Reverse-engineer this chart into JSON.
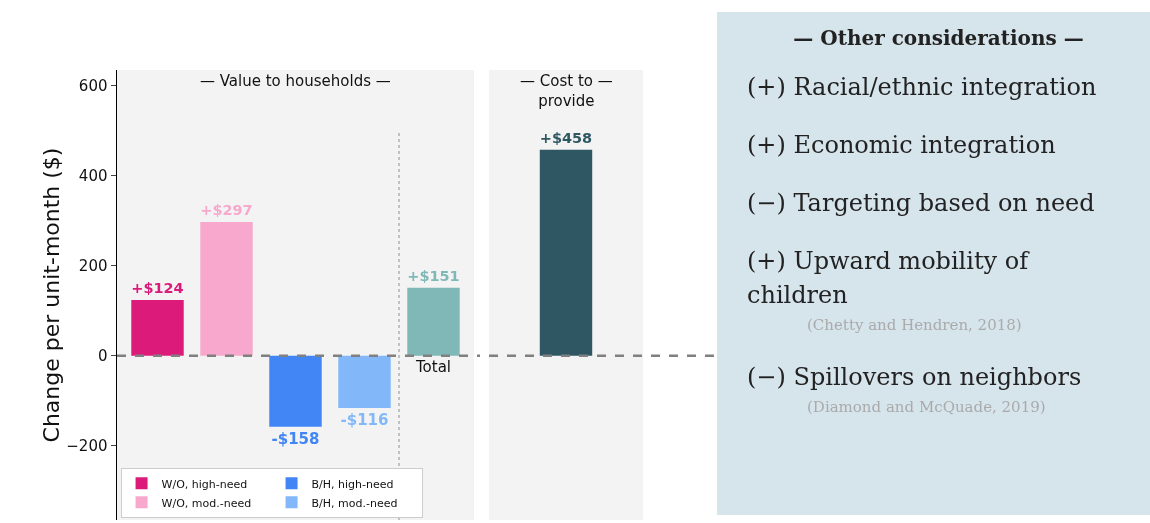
{
  "chart_data": [
    {
      "type": "bar",
      "title": "— Value to households —",
      "ylabel": "Change per unit-month ($)",
      "categories": [
        null,
        null,
        null,
        null,
        "Total"
      ],
      "ylim": [
        -365,
        635
      ],
      "yticks": [
        {
          "value": -200,
          "label": "−200"
        },
        0,
        200,
        400,
        600
      ],
      "grid": false,
      "legend": "bottom left",
      "series": [
        {
          "name": "W/O, high-need",
          "color": "#dc1a7a",
          "values": [
            124,
            null,
            null,
            null,
            null
          ],
          "value_labels": [
            "+$124",
            null,
            null,
            null,
            null
          ]
        },
        {
          "name": "W/O, mod.-need",
          "color": "#f7a8cc",
          "values": [
            null,
            297,
            null,
            null,
            null
          ],
          "value_labels": [
            null,
            "+$297",
            null,
            null,
            null
          ]
        },
        {
          "name": "B/H, high-need",
          "color": "#4285f4",
          "values": [
            null,
            null,
            -158,
            null,
            null
          ],
          "value_labels": [
            null,
            null,
            "-$158",
            null,
            null
          ]
        },
        {
          "name": "B/H, mod.-need",
          "color": "#82b8f9",
          "values": [
            null,
            null,
            null,
            -116,
            null
          ],
          "value_labels": [
            null,
            null,
            null,
            "-$116",
            null
          ]
        },
        {
          "color": "#80b8b8",
          "values": [
            null,
            null,
            null,
            null,
            151
          ],
          "value_labels": [
            null,
            null,
            null,
            null,
            "+$151"
          ]
        }
      ],
      "ref_lines": [
        {
          "axis": "y",
          "value": 0,
          "color": "#808080",
          "line_style": "dashed"
        }
      ]
    },
    {
      "type": "bar",
      "title": "— Cost to —\nprovide",
      "categories": [
        null
      ],
      "ylim": [
        -365,
        635
      ],
      "tick_labels": false,
      "series": [
        {
          "color": "#2e5763",
          "values": [
            458
          ],
          "value_labels": [
            "+$458"
          ]
        }
      ],
      "ref_lines": [
        {
          "axis": "y",
          "value": 0,
          "color": "#808080",
          "line_style": "dashed"
        }
      ]
    },
    {
      "type": "other",
      "title": "— Other considerations —",
      "annotations": [
        "(+) Racial/ethnic integration",
        "(+) Economic integration",
        "(−) Targeting based on need",
        "(+) Upward mobility of children",
        "(Chetty and Hendren, 2018)",
        "(−) Spillovers on neighbors",
        "(Diamond and McQuade, 2019)"
      ]
    }
  ]
}
